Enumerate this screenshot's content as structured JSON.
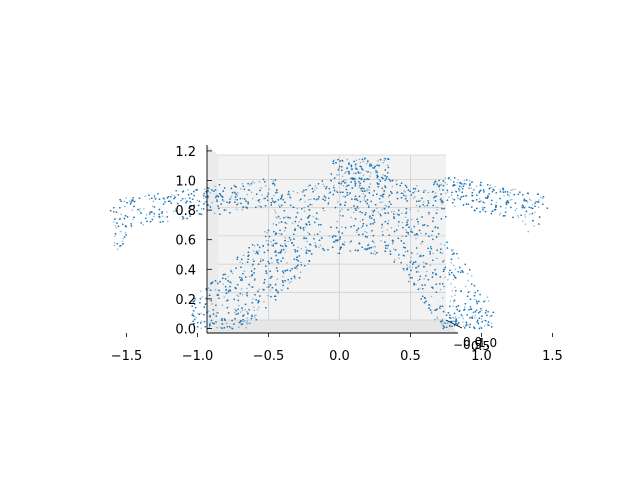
{
  "chart_data": {
    "type": "scatter",
    "projection": "3d",
    "view": "front (elevation ~0, looking along depth axis)",
    "title": "",
    "xlabel": "",
    "ylabel": "",
    "zlabel": "",
    "grid": true,
    "legend": "none",
    "marker_color": "#1f77b4",
    "pane_color": "#f2f2f2",
    "xlim": [
      -1.75,
      1.5
    ],
    "zlim": [
      0.0,
      1.2
    ],
    "x_ticks": [
      "-1.5",
      "-1.0",
      "-0.5",
      "0.0",
      "0.5",
      "1.0",
      "1.5"
    ],
    "z_ticks": [
      "0.0",
      "0.2",
      "0.4",
      "0.6",
      "0.8",
      "1.0",
      "1.2"
    ],
    "depth_ticks": [
      "-0.5",
      "0.0",
      "0.5",
      "1.0"
    ],
    "series": [
      {
        "approx_point_count": 7000,
        "shape_regions": [
          {
            "part": "head",
            "x": [
              -0.05,
              0.4
            ],
            "z": [
              0.98,
              1.15
            ]
          },
          {
            "part": "torso",
            "x": [
              -0.5,
              0.8
            ],
            "z": [
              0.5,
              1.0
            ]
          },
          {
            "part": "left-arm",
            "x": [
              -1.6,
              -0.45
            ],
            "z": [
              0.58,
              0.98
            ]
          },
          {
            "part": "right-arm",
            "x": [
              0.8,
              1.4
            ],
            "z": [
              0.66,
              0.98
            ]
          },
          {
            "part": "left-leg",
            "x": [
              -1.05,
              -0.35
            ],
            "z": [
              0.02,
              0.56
            ]
          },
          {
            "part": "right-leg",
            "x": [
              0.45,
              1.1
            ],
            "z": [
              0.02,
              0.56
            ]
          },
          {
            "part": "left-foot",
            "x": [
              -1.1,
              -0.65
            ],
            "z": [
              0.02,
              0.12
            ]
          },
          {
            "part": "right-foot",
            "x": [
              0.65,
              1.1
            ],
            "z": [
              0.02,
              0.12
            ]
          }
        ]
      }
    ]
  }
}
